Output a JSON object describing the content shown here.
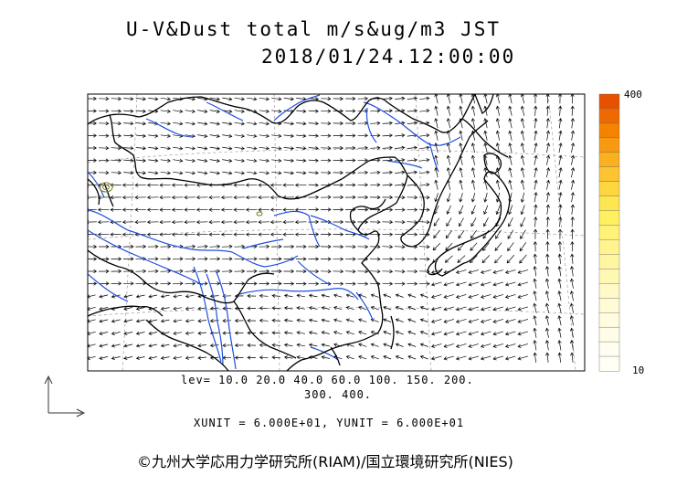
{
  "title": {
    "line1": "U-V&Dust total m/s&ug/m3 JST",
    "line2": "2018/01/24.12:00:00"
  },
  "legend": {
    "lev_line1": "lev= 10.0 20.0 40.0 60.0 100. 150. 200.",
    "lev_line2": "300. 400.",
    "units": "XUNIT = 6.000E+01, YUNIT = 6.000E+01"
  },
  "colorbar": {
    "max_label": "400",
    "min_label": "10",
    "colors": [
      "#e65000",
      "#ee6a00",
      "#f48400",
      "#f89a10",
      "#fbb020",
      "#fcc430",
      "#fdd640",
      "#fee650",
      "#fff060",
      "#fff27a",
      "#fff48e",
      "#fff6a2",
      "#fff8b4",
      "#fffac6",
      "#fffbd4",
      "#fffce0",
      "#fffde8",
      "#fffef0",
      "#fffff6"
    ]
  },
  "map_colors": {
    "coast": "#000000",
    "river": "#1f4fe0",
    "arrow": "#000000",
    "grid": "#888888",
    "dust_contour": "#7a7a20"
  },
  "copyright": "©九州大学応用力学研究所(RIAM)/国立環境研究所(NIES)"
}
